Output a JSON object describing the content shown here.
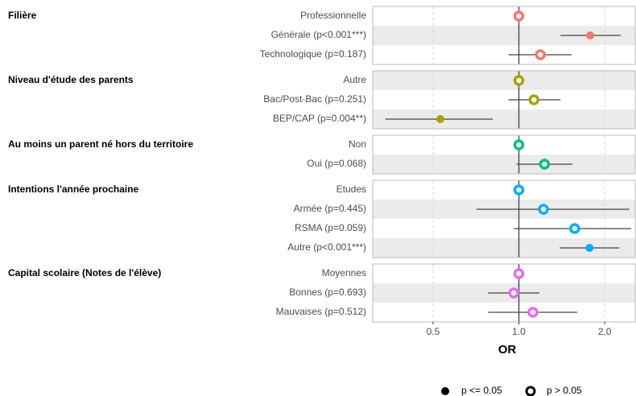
{
  "chart_data": {
    "type": "forest",
    "xlabel": "OR",
    "log_x": true,
    "xlim": [
      0.307,
      2.56
    ],
    "xticks": [
      0.5,
      {
        "value": 1,
        "label": "1.0"
      },
      {
        "value": 2,
        "label": "2.0"
      }
    ],
    "grid": true,
    "reference": 1,
    "groups": [
      {
        "name": "Filière",
        "color": "#F8766D",
        "rows": [
          {
            "label": "Professionnelle",
            "value": 1,
            "significant": false
          },
          {
            "label": "Générale (p<0.001***)",
            "value": 1.78,
            "ci": [
              1.4,
              2.28
            ],
            "significant": true
          },
          {
            "label": "Technologique (p=0.187)",
            "value": 1.19,
            "ci": [
              0.92,
              1.53
            ],
            "significant": false
          }
        ]
      },
      {
        "name": "Niveau d'étude des parents",
        "color": "#A3A500",
        "rows": [
          {
            "label": "Autre",
            "value": 1,
            "significant": false
          },
          {
            "label": "Bac/Post-Bac (p=0.251)",
            "value": 1.13,
            "ci": [
              0.92,
              1.4
            ],
            "significant": false
          },
          {
            "label": "BEP/CAP (p=0.004**)",
            "value": 0.53,
            "ci": [
              0.34,
              0.81
            ],
            "significant": true
          }
        ]
      },
      {
        "name": "Au moins un parent né hors du territoire",
        "color": "#00BF7D",
        "rows": [
          {
            "label": "Non",
            "value": 1,
            "significant": false
          },
          {
            "label": "Oui (p=0.068)",
            "value": 1.23,
            "ci": [
              0.98,
              1.54
            ],
            "significant": false
          }
        ]
      },
      {
        "name": "Intentions l'année prochaine",
        "color": "#00B0F6",
        "rows": [
          {
            "label": "Etudes",
            "value": 1,
            "significant": false
          },
          {
            "label": "Armée (p=0.445)",
            "value": 1.22,
            "ci": [
              0.71,
              2.44
            ],
            "significant": false
          },
          {
            "label": "RSMA (p=0.059)",
            "value": 1.57,
            "ci": [
              0.96,
              2.48
            ],
            "significant": false
          },
          {
            "label": "Autre (p<0.001***)",
            "value": 1.77,
            "ci": [
              1.39,
              2.25
            ],
            "significant": true
          }
        ]
      },
      {
        "name": "Capital scolaire (Notes de l'élève)",
        "color": "#E76BF3",
        "rows": [
          {
            "label": "Moyennes",
            "value": 1,
            "significant": false
          },
          {
            "label": "Bonnes (p=0.693)",
            "value": 0.96,
            "ci": [
              0.78,
              1.18
            ],
            "significant": false
          },
          {
            "label": "Mauvaises (p=0.512)",
            "value": 1.12,
            "ci": [
              0.78,
              1.6
            ],
            "significant": false
          }
        ]
      }
    ],
    "legend": [
      {
        "label": "p <= 0.05",
        "filled": true
      },
      {
        "label": "p > 0.05",
        "filled": false
      }
    ]
  }
}
